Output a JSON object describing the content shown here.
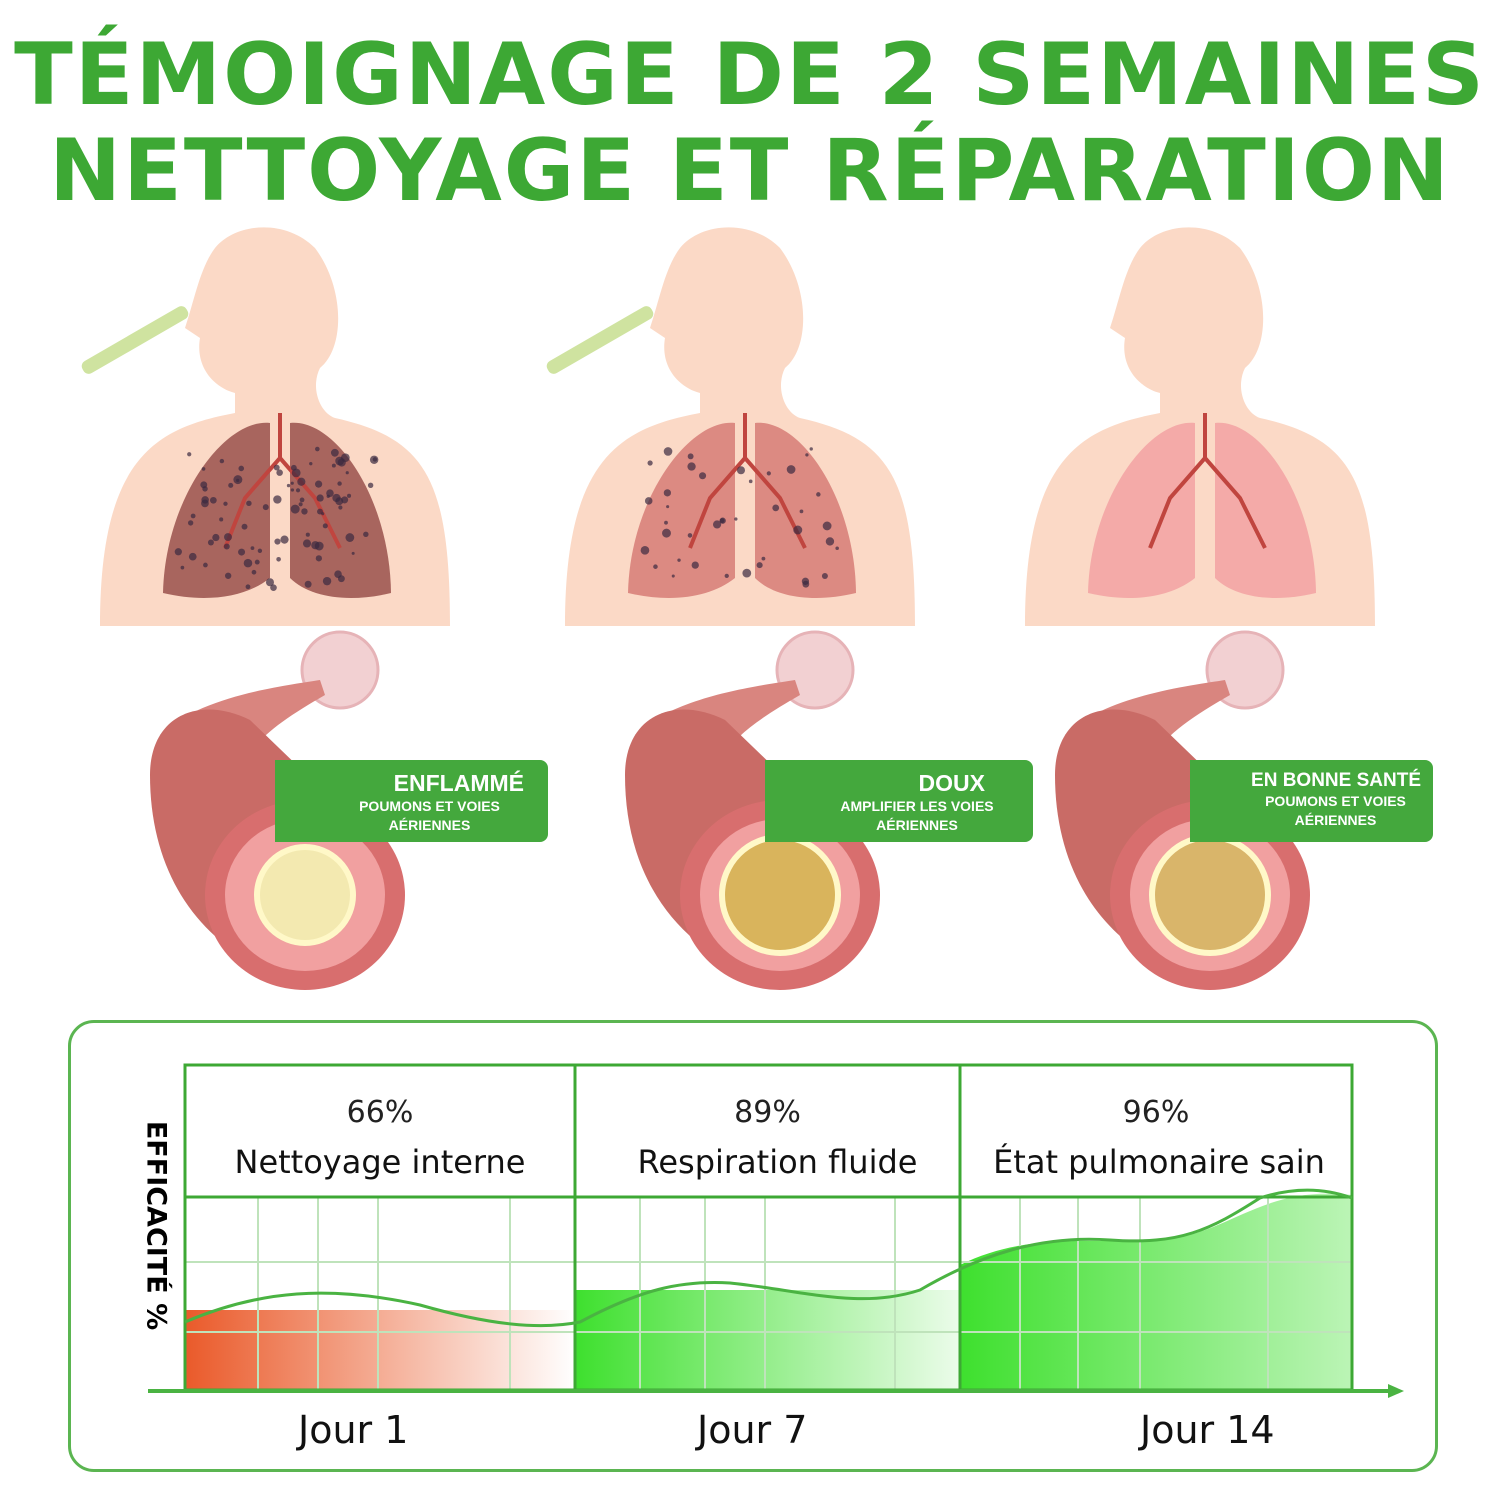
{
  "title": {
    "line1": "TÉMOIGNAGE DE 2 SEMAINES",
    "line2": "NETTOYAGE ET RÉPARATION"
  },
  "stages": [
    {
      "heading": "ENFLAMMÉ",
      "sub1": "POUMONS ET VOIES",
      "sub2": "AÉRIENNES",
      "lung_color": "#a8655e"
    },
    {
      "heading": "DOUX",
      "sub1": "AMPLIFIER LES VOIES",
      "sub2": "AÉRIENNES",
      "lung_color": "#dc8a82"
    },
    {
      "heading": "EN BONNE SANTÉ",
      "sub1": "POUMONS ET VOIES",
      "sub2": "AÉRIENNES",
      "lung_color": "#f4aaa8"
    }
  ],
  "chart": {
    "ylabel": "EFFICACITÉ %",
    "columns": [
      {
        "percent": "66%",
        "label": "Nettoyage interne",
        "day": "Jour 1"
      },
      {
        "percent": "89%",
        "label": "Respiration fluide",
        "day": "Jour 7"
      },
      {
        "percent": "96%",
        "label": "État pulmonaire sain",
        "day": "Jour 14"
      }
    ],
    "colors": {
      "accent": "#3da834",
      "day1_fill": "#ea5a2a",
      "fill": "#3ee02e"
    }
  }
}
